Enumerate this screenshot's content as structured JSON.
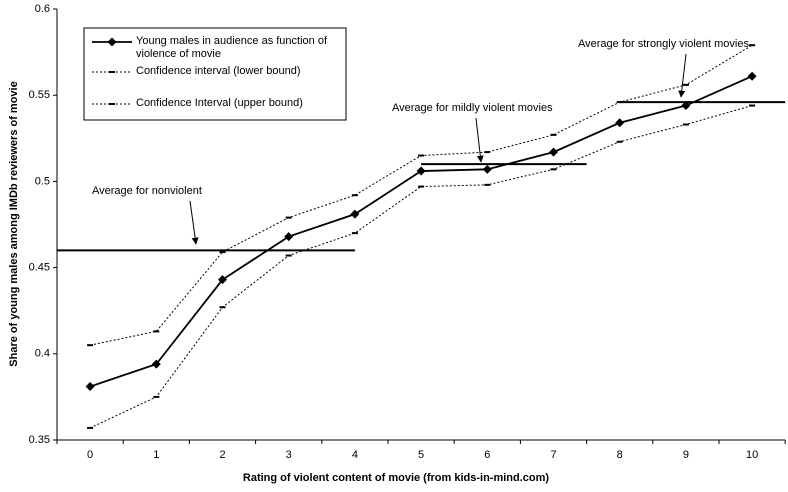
{
  "chart_data": {
    "type": "line",
    "x_label": "Rating of violent content of movie (from kids-in-mind.com)",
    "y_label": "Share of young males among IMDb reviewers of movie",
    "x": [
      0,
      1,
      2,
      3,
      4,
      5,
      6,
      7,
      8,
      9,
      10
    ],
    "xticks": [
      0,
      1,
      2,
      3,
      4,
      5,
      6,
      7,
      8,
      9,
      10
    ],
    "ylim": [
      0.35,
      0.6
    ],
    "yticks": [
      0.35,
      0.4,
      0.45,
      0.5,
      0.55,
      0.6
    ],
    "grid": false,
    "legend": "top-left",
    "series": [
      {
        "name": "Young males in audience as function of violence of movie",
        "color": "#000000",
        "style": "solid",
        "values": [
          0.381,
          0.394,
          0.443,
          0.468,
          0.481,
          0.506,
          0.507,
          0.517,
          0.534,
          0.544,
          0.561
        ]
      },
      {
        "name": "Confidence interval (lower bound)",
        "color": "#000000",
        "style": "dashed",
        "values": [
          0.357,
          0.375,
          0.427,
          0.457,
          0.47,
          0.497,
          0.498,
          0.507,
          0.523,
          0.533,
          0.544
        ]
      },
      {
        "name": "Confidence Interval (upper bound)",
        "color": "#000000",
        "style": "dashed",
        "values": [
          0.405,
          0.413,
          0.459,
          0.479,
          0.492,
          0.515,
          0.517,
          0.527,
          0.546,
          0.556,
          0.579
        ]
      }
    ],
    "averages": [
      {
        "label": "Average for nonviolent",
        "value": 0.46,
        "from": -0.5,
        "to": 4
      },
      {
        "label": "Average for mildly violent movies",
        "value": 0.51,
        "from": 5,
        "to": 7.5
      },
      {
        "label": "Average for strongly violent movies",
        "value": 0.546,
        "from": 8,
        "to": 10.5
      }
    ]
  }
}
